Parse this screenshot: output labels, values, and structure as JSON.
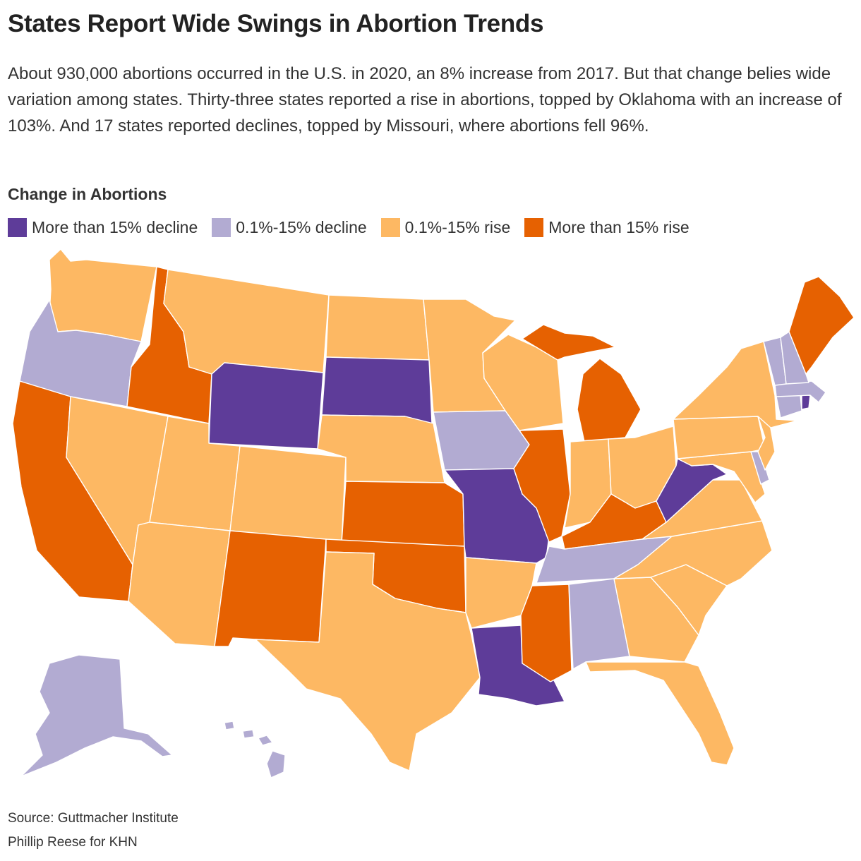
{
  "title": "States Report Wide Swings in Abortion Trends",
  "subtitle": "About 930,000 abortions occurred in the U.S. in 2020, an 8% increase from 2017. But that change belies wide variation among states. Thirty-three states reported a rise in abortions, topped by Oklahoma with an increase of 103%. And 17 states reported declines, topped by Missouri, where abortions fell 96%.",
  "legend": {
    "title": "Change in Abortions",
    "items": [
      {
        "key": "big_decline",
        "label": "More than 15% decline",
        "color": "#5e3c99"
      },
      {
        "key": "small_decline",
        "label": "0.1%-15% decline",
        "color": "#b2abd2"
      },
      {
        "key": "small_rise",
        "label": "0.1%-15% rise",
        "color": "#fdb863"
      },
      {
        "key": "big_rise",
        "label": "More than 15% rise",
        "color": "#e66101"
      }
    ]
  },
  "states": [
    {
      "name": "Washington",
      "category": "small_rise"
    },
    {
      "name": "Oregon",
      "category": "small_decline"
    },
    {
      "name": "California",
      "category": "big_rise"
    },
    {
      "name": "Idaho",
      "category": "big_rise"
    },
    {
      "name": "Nevada",
      "category": "small_rise"
    },
    {
      "name": "Montana",
      "category": "small_rise"
    },
    {
      "name": "Wyoming",
      "category": "big_decline"
    },
    {
      "name": "Utah",
      "category": "small_rise"
    },
    {
      "name": "Arizona",
      "category": "small_rise"
    },
    {
      "name": "Colorado",
      "category": "small_rise"
    },
    {
      "name": "New Mexico",
      "category": "big_rise"
    },
    {
      "name": "North Dakota",
      "category": "small_rise"
    },
    {
      "name": "South Dakota",
      "category": "big_decline"
    },
    {
      "name": "Nebraska",
      "category": "small_rise"
    },
    {
      "name": "Kansas",
      "category": "big_rise"
    },
    {
      "name": "Oklahoma",
      "category": "big_rise"
    },
    {
      "name": "Texas",
      "category": "small_rise"
    },
    {
      "name": "Minnesota",
      "category": "small_rise"
    },
    {
      "name": "Iowa",
      "category": "small_decline"
    },
    {
      "name": "Missouri",
      "category": "big_decline"
    },
    {
      "name": "Arkansas",
      "category": "small_rise"
    },
    {
      "name": "Louisiana",
      "category": "big_decline"
    },
    {
      "name": "Wisconsin",
      "category": "small_rise"
    },
    {
      "name": "Illinois",
      "category": "big_rise"
    },
    {
      "name": "Michigan",
      "category": "big_rise"
    },
    {
      "name": "Indiana",
      "category": "small_rise"
    },
    {
      "name": "Ohio",
      "category": "small_rise"
    },
    {
      "name": "Kentucky",
      "category": "big_rise"
    },
    {
      "name": "Tennessee",
      "category": "small_decline"
    },
    {
      "name": "Mississippi",
      "category": "big_rise"
    },
    {
      "name": "Alabama",
      "category": "small_decline"
    },
    {
      "name": "Georgia",
      "category": "small_rise"
    },
    {
      "name": "Florida",
      "category": "small_rise"
    },
    {
      "name": "South Carolina",
      "category": "small_rise"
    },
    {
      "name": "North Carolina",
      "category": "small_rise"
    },
    {
      "name": "Virginia",
      "category": "small_rise"
    },
    {
      "name": "West Virginia",
      "category": "big_decline"
    },
    {
      "name": "Maryland",
      "category": "small_rise"
    },
    {
      "name": "Delaware",
      "category": "small_decline"
    },
    {
      "name": "Pennsylvania",
      "category": "small_rise"
    },
    {
      "name": "New Jersey",
      "category": "small_rise"
    },
    {
      "name": "New York",
      "category": "small_rise"
    },
    {
      "name": "Connecticut",
      "category": "small_decline"
    },
    {
      "name": "Rhode Island",
      "category": "big_decline"
    },
    {
      "name": "Massachusetts",
      "category": "small_decline"
    },
    {
      "name": "Vermont",
      "category": "small_decline"
    },
    {
      "name": "New Hampshire",
      "category": "small_decline"
    },
    {
      "name": "Maine",
      "category": "big_rise"
    },
    {
      "name": "Alaska",
      "category": "small_decline"
    },
    {
      "name": "Hawaii",
      "category": "small_decline"
    }
  ],
  "source": "Source: Guttmacher Institute",
  "credit": "Phillip Reese for KHN"
}
